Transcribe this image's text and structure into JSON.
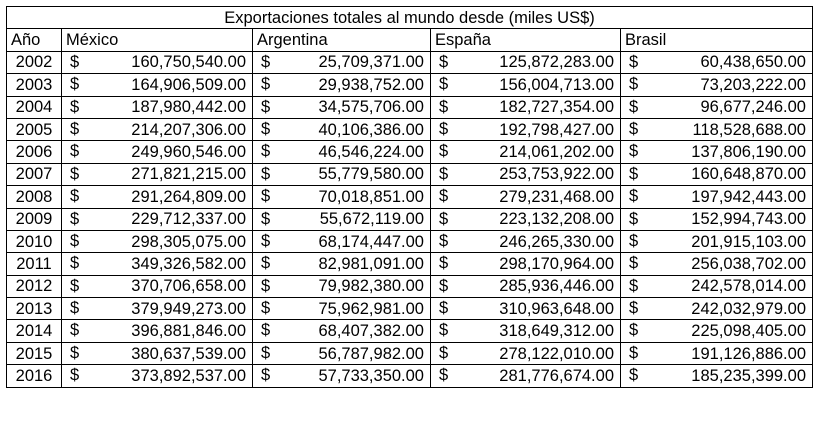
{
  "title": "Exportaciones totales al mundo desde (miles US$)",
  "headers": [
    "Año",
    "México",
    "Argentina",
    "España",
    "Brasil"
  ],
  "currency_symbol": "$",
  "rows": [
    {
      "year": "2002",
      "values": [
        "160,750,540.00",
        "25,709,371.00",
        "125,872,283.00",
        "60,438,650.00"
      ]
    },
    {
      "year": "2003",
      "values": [
        "164,906,509.00",
        "29,938,752.00",
        "156,004,713.00",
        "73,203,222.00"
      ]
    },
    {
      "year": "2004",
      "values": [
        "187,980,442.00",
        "34,575,706.00",
        "182,727,354.00",
        "96,677,246.00"
      ]
    },
    {
      "year": "2005",
      "values": [
        "214,207,306.00",
        "40,106,386.00",
        "192,798,427.00",
        "118,528,688.00"
      ]
    },
    {
      "year": "2006",
      "values": [
        "249,960,546.00",
        "46,546,224.00",
        "214,061,202.00",
        "137,806,190.00"
      ]
    },
    {
      "year": "2007",
      "values": [
        "271,821,215.00",
        "55,779,580.00",
        "253,753,922.00",
        "160,648,870.00"
      ]
    },
    {
      "year": "2008",
      "values": [
        "291,264,809.00",
        "70,018,851.00",
        "279,231,468.00",
        "197,942,443.00"
      ]
    },
    {
      "year": "2009",
      "values": [
        "229,712,337.00",
        "55,672,119.00",
        "223,132,208.00",
        "152,994,743.00"
      ]
    },
    {
      "year": "2010",
      "values": [
        "298,305,075.00",
        "68,174,447.00",
        "246,265,330.00",
        "201,915,103.00"
      ]
    },
    {
      "year": "2011",
      "values": [
        "349,326,582.00",
        "82,981,091.00",
        "298,170,964.00",
        "256,038,702.00"
      ]
    },
    {
      "year": "2012",
      "values": [
        "370,706,658.00",
        "79,982,380.00",
        "285,936,446.00",
        "242,578,014.00"
      ]
    },
    {
      "year": "2013",
      "values": [
        "379,949,273.00",
        "75,962,981.00",
        "310,963,648.00",
        "242,032,979.00"
      ]
    },
    {
      "year": "2014",
      "values": [
        "396,881,846.00",
        "68,407,382.00",
        "318,649,312.00",
        "225,098,405.00"
      ]
    },
    {
      "year": "2015",
      "values": [
        "380,637,539.00",
        "56,787,982.00",
        "278,122,010.00",
        "191,126,886.00"
      ]
    },
    {
      "year": "2016",
      "values": [
        "373,892,537.00",
        "57,733,350.00",
        "281,776,674.00",
        "185,235,399.00"
      ]
    }
  ]
}
